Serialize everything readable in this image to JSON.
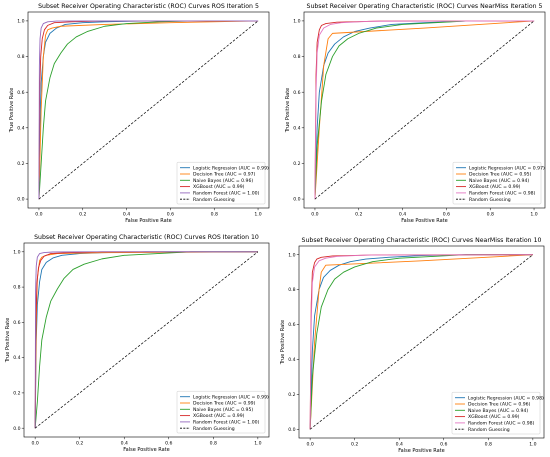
{
  "chart_data": [
    {
      "type": "line",
      "title": "Subset Receiver Operating Characteristic (ROC) Curves ROS Iteration 5",
      "xlabel": "False Positive Rate",
      "ylabel": "True Positive Rate",
      "xlim": [
        0,
        1
      ],
      "ylim": [
        0,
        1
      ],
      "xticks": [
        "0.0",
        "0.2",
        "0.4",
        "0.6",
        "0.8",
        "1.0"
      ],
      "yticks": [
        "0.0",
        "0.2",
        "0.4",
        "0.6",
        "0.8",
        "1.0"
      ],
      "grid": false,
      "legend_position": "lower-right",
      "series": [
        {
          "name": "Logistic Regression (AUC = 0.99)",
          "color": "#1f77b4",
          "x": [
            0,
            0.005,
            0.01,
            0.02,
            0.03,
            0.05,
            0.08,
            0.12,
            0.2,
            0.3,
            0.5,
            1.0
          ],
          "y": [
            0,
            0.45,
            0.65,
            0.8,
            0.88,
            0.93,
            0.96,
            0.98,
            0.99,
            0.995,
            1.0,
            1.0
          ]
        },
        {
          "name": "Decision Tree (AUC = 0.97)",
          "color": "#ff7f0e",
          "x": [
            0,
            0.01,
            0.02,
            0.03,
            0.04,
            0.06,
            0.1,
            0.3,
            0.6,
            1.0
          ],
          "y": [
            0,
            0.5,
            0.8,
            0.92,
            0.95,
            0.96,
            0.97,
            0.98,
            0.99,
            1.0
          ]
        },
        {
          "name": "Naive Bayes (AUC = 0.96)",
          "color": "#2ca02c",
          "x": [
            0,
            0.01,
            0.02,
            0.03,
            0.05,
            0.07,
            0.1,
            0.13,
            0.17,
            0.22,
            0.3,
            0.4,
            0.55,
            0.7,
            1.0
          ],
          "y": [
            0,
            0.2,
            0.4,
            0.55,
            0.68,
            0.76,
            0.82,
            0.87,
            0.91,
            0.94,
            0.97,
            0.985,
            0.995,
            1.0,
            1.0
          ]
        },
        {
          "name": "XGBoost (AUC = 0.99)",
          "color": "#d62728",
          "x": [
            0,
            0.003,
            0.008,
            0.015,
            0.025,
            0.04,
            0.07,
            0.15,
            0.3,
            1.0
          ],
          "y": [
            0,
            0.6,
            0.8,
            0.9,
            0.95,
            0.975,
            0.99,
            0.995,
            1.0,
            1.0
          ]
        },
        {
          "name": "Random Forest (AUC = 1.00)",
          "color": "#9467bd",
          "x": [
            0,
            0.002,
            0.005,
            0.01,
            0.02,
            0.04,
            0.08,
            0.2,
            1.0
          ],
          "y": [
            0,
            0.75,
            0.9,
            0.96,
            0.985,
            0.995,
            0.999,
            1.0,
            1.0
          ]
        },
        {
          "name": "Random Guessing",
          "color": "#000000",
          "dashed": true,
          "x": [
            0,
            1
          ],
          "y": [
            0,
            1
          ]
        }
      ]
    },
    {
      "type": "line",
      "title": "Subset Receiver Operating Characteristic (ROC) Curves NearMiss Iteration 5",
      "xlabel": "False Positive Rate",
      "ylabel": "True Positive Rate",
      "xlim": [
        0,
        1
      ],
      "ylim": [
        0,
        1
      ],
      "xticks": [
        "0.0",
        "0.2",
        "0.4",
        "0.6",
        "0.8",
        "1.0"
      ],
      "yticks": [
        "0.0",
        "0.2",
        "0.4",
        "0.6",
        "0.8",
        "1.0"
      ],
      "grid": false,
      "legend_position": "lower-right",
      "series": [
        {
          "name": "Logistic Regression (AUC = 0.97)",
          "color": "#1f77b4",
          "x": [
            0,
            0.01,
            0.02,
            0.04,
            0.06,
            0.09,
            0.13,
            0.18,
            0.25,
            0.35,
            0.5,
            0.7,
            1.0
          ],
          "y": [
            0,
            0.4,
            0.6,
            0.75,
            0.82,
            0.87,
            0.91,
            0.94,
            0.96,
            0.98,
            0.99,
            1.0,
            1.0
          ]
        },
        {
          "name": "Decision Tree (AUC = 0.95)",
          "color": "#ff7f0e",
          "x": [
            0,
            0.02,
            0.04,
            0.06,
            0.08,
            0.5,
            1.0
          ],
          "y": [
            0,
            0.4,
            0.75,
            0.9,
            0.93,
            0.96,
            1.0
          ]
        },
        {
          "name": "Naive Bayes (AUC = 0.94)",
          "color": "#2ca02c",
          "x": [
            0,
            0.01,
            0.03,
            0.05,
            0.08,
            0.11,
            0.15,
            0.2,
            0.28,
            0.4,
            0.55,
            0.7,
            1.0
          ],
          "y": [
            0,
            0.3,
            0.55,
            0.7,
            0.8,
            0.86,
            0.9,
            0.93,
            0.96,
            0.98,
            0.99,
            1.0,
            1.0
          ]
        },
        {
          "name": "XGBoost (AUC = 0.99)",
          "color": "#d62728",
          "x": [
            0,
            0.005,
            0.01,
            0.02,
            0.03,
            0.05,
            0.1,
            0.3,
            1.0
          ],
          "y": [
            0,
            0.7,
            0.88,
            0.95,
            0.975,
            0.985,
            0.993,
            0.999,
            1.0
          ]
        },
        {
          "name": "Random Forest (AUC = 0.98)",
          "color": "#e377c2",
          "x": [
            0,
            0.005,
            0.01,
            0.02,
            0.04,
            0.07,
            0.12,
            0.25,
            1.0
          ],
          "y": [
            0,
            0.6,
            0.82,
            0.92,
            0.96,
            0.98,
            0.99,
            0.998,
            1.0
          ]
        },
        {
          "name": "Random Guessing",
          "color": "#000000",
          "dashed": true,
          "x": [
            0,
            1
          ],
          "y": [
            0,
            1
          ]
        }
      ]
    },
    {
      "type": "line",
      "title": "Subset Receiver Operating Characteristic (ROC) Curves ROS Iteration 10",
      "xlabel": "False Positive Rate",
      "ylabel": "True Positive Rate",
      "xlim": [
        0,
        1
      ],
      "ylim": [
        0,
        1
      ],
      "xticks": [
        "0.0",
        "0.2",
        "0.4",
        "0.6",
        "0.8",
        "1.0"
      ],
      "yticks": [
        "0.0",
        "0.2",
        "0.4",
        "0.6",
        "0.8",
        "1.0"
      ],
      "grid": false,
      "legend_position": "lower-right",
      "series": [
        {
          "name": "Logistic Regression (AUC = 0.99)",
          "color": "#1f77b4",
          "x": [
            0,
            0.005,
            0.01,
            0.02,
            0.03,
            0.05,
            0.08,
            0.12,
            0.2,
            0.3,
            0.5,
            1.0
          ],
          "y": [
            0,
            0.5,
            0.7,
            0.83,
            0.9,
            0.94,
            0.965,
            0.98,
            0.99,
            0.995,
            1.0,
            1.0
          ]
        },
        {
          "name": "Decision Tree (AUC = 0.99)",
          "color": "#ff7f0e",
          "x": [
            0,
            0.005,
            0.01,
            0.02,
            0.03,
            0.05,
            0.1,
            0.3,
            1.0
          ],
          "y": [
            0,
            0.6,
            0.85,
            0.95,
            0.97,
            0.98,
            0.99,
            0.995,
            1.0
          ]
        },
        {
          "name": "Naive Bayes (AUC = 0.95)",
          "color": "#2ca02c",
          "x": [
            0,
            0.01,
            0.02,
            0.03,
            0.05,
            0.07,
            0.1,
            0.13,
            0.17,
            0.22,
            0.3,
            0.4,
            0.55,
            0.7,
            1.0
          ],
          "y": [
            0,
            0.15,
            0.35,
            0.5,
            0.63,
            0.72,
            0.79,
            0.85,
            0.9,
            0.93,
            0.96,
            0.98,
            0.99,
            1.0,
            1.0
          ]
        },
        {
          "name": "XGBoost (AUC = 0.99)",
          "color": "#d62728",
          "x": [
            0,
            0.003,
            0.008,
            0.015,
            0.025,
            0.04,
            0.07,
            0.15,
            0.3,
            1.0
          ],
          "y": [
            0,
            0.6,
            0.82,
            0.91,
            0.95,
            0.975,
            0.99,
            0.995,
            1.0,
            1.0
          ]
        },
        {
          "name": "Random Forest (AUC = 1.00)",
          "color": "#9467bd",
          "x": [
            0,
            0.002,
            0.005,
            0.01,
            0.02,
            0.04,
            0.08,
            0.2,
            1.0
          ],
          "y": [
            0,
            0.78,
            0.92,
            0.97,
            0.99,
            0.996,
            0.999,
            1.0,
            1.0
          ]
        },
        {
          "name": "Random Guessing",
          "color": "#000000",
          "dashed": true,
          "x": [
            0,
            1
          ],
          "y": [
            0,
            1
          ]
        }
      ]
    },
    {
      "type": "line",
      "title": "Subset Receiver Operating Characteristic (ROC) Curves NearMiss Iteration 10",
      "xlabel": "False Positive Rate",
      "ylabel": "True Positive Rate",
      "xlim": [
        0,
        1
      ],
      "ylim": [
        0,
        1
      ],
      "xticks": [
        "0.0",
        "0.2",
        "0.4",
        "0.6",
        "0.8",
        "1.0"
      ],
      "yticks": [
        "0.0",
        "0.2",
        "0.4",
        "0.6",
        "0.8",
        "1.0"
      ],
      "grid": false,
      "legend_position": "lower-right",
      "series": [
        {
          "name": "Logistic Regression (AUC = 0.98)",
          "color": "#1f77b4",
          "x": [
            0,
            0.01,
            0.02,
            0.04,
            0.06,
            0.09,
            0.13,
            0.18,
            0.25,
            0.35,
            0.5,
            0.7,
            1.0
          ],
          "y": [
            0,
            0.45,
            0.65,
            0.8,
            0.87,
            0.91,
            0.94,
            0.96,
            0.975,
            0.985,
            0.995,
            1.0,
            1.0
          ]
        },
        {
          "name": "Decision Tree (AUC = 0.96)",
          "color": "#ff7f0e",
          "x": [
            0,
            0.02,
            0.04,
            0.05,
            0.07,
            0.5,
            1.0
          ],
          "y": [
            0,
            0.5,
            0.8,
            0.9,
            0.94,
            0.965,
            1.0
          ]
        },
        {
          "name": "Naive Bayes (AUC = 0.94)",
          "color": "#2ca02c",
          "x": [
            0,
            0.01,
            0.03,
            0.05,
            0.08,
            0.11,
            0.15,
            0.2,
            0.28,
            0.4,
            0.55,
            0.7,
            1.0
          ],
          "y": [
            0,
            0.3,
            0.55,
            0.7,
            0.8,
            0.86,
            0.9,
            0.93,
            0.96,
            0.98,
            0.99,
            1.0,
            1.0
          ]
        },
        {
          "name": "XGBoost (AUC = 0.99)",
          "color": "#d62728",
          "x": [
            0,
            0.005,
            0.01,
            0.02,
            0.03,
            0.05,
            0.1,
            0.3,
            1.0
          ],
          "y": [
            0,
            0.72,
            0.9,
            0.955,
            0.975,
            0.985,
            0.993,
            0.999,
            1.0
          ]
        },
        {
          "name": "Random Forest (AUC = 0.98)",
          "color": "#e377c2",
          "x": [
            0,
            0.005,
            0.01,
            0.02,
            0.04,
            0.07,
            0.12,
            0.25,
            1.0
          ],
          "y": [
            0,
            0.62,
            0.84,
            0.93,
            0.965,
            0.98,
            0.99,
            0.998,
            1.0
          ]
        },
        {
          "name": "Random Guessing",
          "color": "#000000",
          "dashed": true,
          "x": [
            0,
            1
          ],
          "y": [
            0,
            1
          ]
        }
      ]
    }
  ]
}
